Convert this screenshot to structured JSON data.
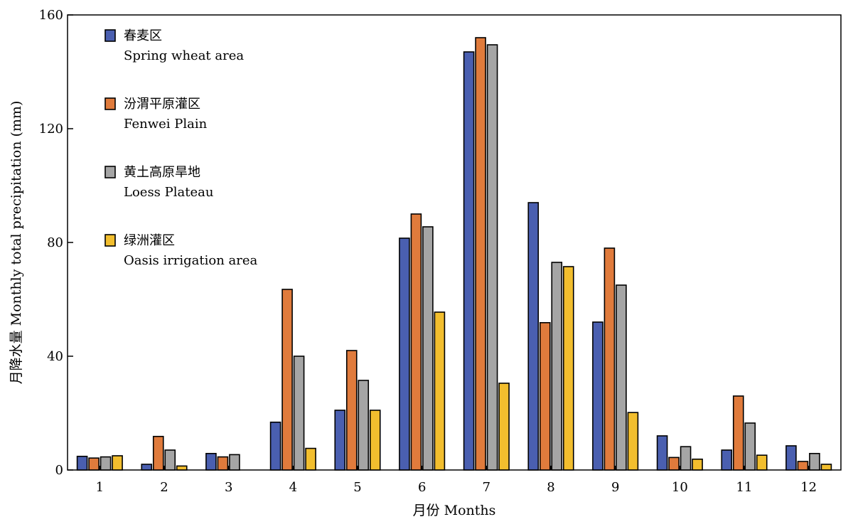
{
  "chart_data": {
    "type": "bar",
    "title": "",
    "xlabel": "月份 Months",
    "ylabel": "月降水量 Monthly total precipitation (mm)",
    "ylim": [
      0,
      160
    ],
    "yticks": [
      0,
      40,
      80,
      120,
      160
    ],
    "grid": false,
    "legend_position": "top-left",
    "categories": [
      "1",
      "2",
      "3",
      "4",
      "5",
      "6",
      "7",
      "8",
      "9",
      "10",
      "11",
      "12"
    ],
    "series": [
      {
        "name": "春麦区",
        "name_en": "Spring wheat area",
        "color": "#4a5fb0",
        "values": [
          4.8,
          2.0,
          5.8,
          16.8,
          21.0,
          81.5,
          147.0,
          94.0,
          52.0,
          12.0,
          7.0,
          8.5
        ]
      },
      {
        "name": "汾渭平原灌区",
        "name_en": "Fenwei Plain",
        "color": "#e07b3c",
        "values": [
          4.2,
          11.8,
          4.6,
          63.5,
          42.0,
          90.0,
          152.0,
          51.8,
          78.0,
          4.4,
          26.0,
          3.0
        ]
      },
      {
        "name": "黄土高原旱地",
        "name_en": "Loess Plateau",
        "color": "#a5a5a5",
        "values": [
          4.6,
          7.0,
          5.4,
          40.0,
          31.5,
          85.5,
          149.5,
          73.0,
          65.0,
          8.2,
          16.5,
          5.8
        ]
      },
      {
        "name": "绿洲灌区",
        "name_en": "Oasis irrigation area",
        "color": "#f2be2e",
        "values": [
          5.0,
          1.4,
          null,
          7.6,
          21.0,
          55.5,
          30.5,
          71.5,
          20.2,
          3.8,
          5.2,
          2.0
        ]
      }
    ]
  }
}
